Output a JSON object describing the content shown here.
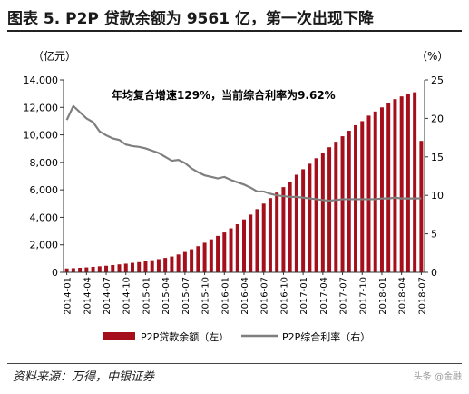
{
  "header": {
    "title": "图表 5. P2P 贷款余额为 9561 亿，第一次出现下降"
  },
  "footer": {
    "source": "资料来源：万得，中银证券",
    "watermark": "头条 @金融"
  },
  "chart_data": {
    "type": "bar+line",
    "left_unit": "（亿元）",
    "right_unit": "（%）",
    "annotation": "年均复合增速129%，当前综合利率为9.62%",
    "left_axis": {
      "min": 0,
      "max": 14000,
      "ticks": [
        0,
        2000,
        4000,
        6000,
        8000,
        10000,
        12000,
        14000
      ],
      "tick_labels": [
        "0",
        "2,000",
        "4,000",
        "6,000",
        "8,000",
        "10,000",
        "12,000",
        "14,000"
      ]
    },
    "right_axis": {
      "min": 0,
      "max": 25,
      "ticks": [
        0,
        5,
        10,
        15,
        20,
        25
      ],
      "tick_labels": [
        "0",
        "5",
        "10",
        "15",
        "20",
        "25"
      ]
    },
    "x_tick_labels": [
      "2014-01",
      "2014-04",
      "2014-07",
      "2014-10",
      "2015-01",
      "2015-04",
      "2015-07",
      "2015-10",
      "2016-01",
      "2016-04",
      "2016-07",
      "2016-10",
      "2017-01",
      "2017-04",
      "2017-07",
      "2017-10",
      "2018-01",
      "2018-04",
      "2018-07"
    ],
    "categories": [
      "2014-01",
      "2014-02",
      "2014-03",
      "2014-04",
      "2014-05",
      "2014-06",
      "2014-07",
      "2014-08",
      "2014-09",
      "2014-10",
      "2014-11",
      "2014-12",
      "2015-01",
      "2015-02",
      "2015-03",
      "2015-04",
      "2015-05",
      "2015-06",
      "2015-07",
      "2015-08",
      "2015-09",
      "2015-10",
      "2015-11",
      "2015-12",
      "2016-01",
      "2016-02",
      "2016-03",
      "2016-04",
      "2016-05",
      "2016-06",
      "2016-07",
      "2016-08",
      "2016-09",
      "2016-10",
      "2016-11",
      "2016-12",
      "2017-01",
      "2017-02",
      "2017-03",
      "2017-04",
      "2017-05",
      "2017-06",
      "2017-07",
      "2017-08",
      "2017-09",
      "2017-10",
      "2017-11",
      "2017-12",
      "2018-01",
      "2018-02",
      "2018-03",
      "2018-04",
      "2018-05",
      "2018-06",
      "2018-07"
    ],
    "series": [
      {
        "name": "P2P贷款余额（左）",
        "type": "bar",
        "axis": "left",
        "color": "#a50f1b",
        "values": [
          280,
          300,
          330,
          360,
          400,
          440,
          480,
          530,
          580,
          630,
          690,
          740,
          800,
          880,
          960,
          1050,
          1150,
          1300,
          1480,
          1680,
          1900,
          2150,
          2400,
          2650,
          2900,
          3200,
          3500,
          3850,
          4200,
          4600,
          5000,
          5400,
          5800,
          6200,
          6600,
          7100,
          7500,
          7900,
          8300,
          8700,
          9100,
          9500,
          9900,
          10300,
          10700,
          11000,
          11400,
          11700,
          12000,
          12300,
          12600,
          12800,
          13000,
          13100,
          9561
        ]
      },
      {
        "name": "P2P综合利率（右）",
        "type": "line",
        "axis": "right",
        "color": "#7f7f7f",
        "values": [
          19.8,
          21.6,
          20.8,
          20.0,
          19.5,
          18.3,
          17.8,
          17.4,
          17.2,
          16.6,
          16.4,
          16.3,
          16.1,
          15.8,
          15.5,
          15.0,
          14.5,
          14.6,
          14.2,
          13.5,
          13.0,
          12.6,
          12.4,
          12.2,
          12.4,
          12.0,
          11.7,
          11.4,
          11.0,
          10.5,
          10.5,
          10.2,
          10.0,
          9.9,
          9.8,
          9.8,
          9.7,
          9.6,
          9.5,
          9.4,
          9.3,
          9.4,
          9.5,
          9.5,
          9.5,
          9.5,
          9.5,
          9.5,
          9.6,
          9.6,
          9.7,
          9.6,
          9.6,
          9.6,
          9.62
        ]
      }
    ],
    "legend": {
      "placement": "bottom"
    }
  }
}
